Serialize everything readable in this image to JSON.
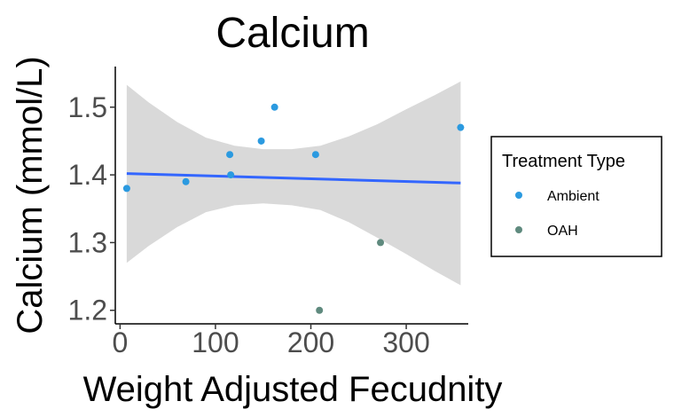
{
  "chart_data": {
    "type": "scatter",
    "title": "Calcium",
    "xlabel": "Weight Adjusted Fecudnity",
    "ylabel": "Calcium (mmol/L)",
    "xlim": [
      -5,
      365
    ],
    "ylim": [
      1.18,
      1.56
    ],
    "xticks": [
      0,
      100,
      200,
      300
    ],
    "xtick_labels": [
      "0",
      "100",
      "200",
      "300"
    ],
    "yticks": [
      1.2,
      1.3,
      1.4,
      1.5
    ],
    "ytick_labels": [
      "1.2",
      "1.3",
      "1.4",
      "1.5"
    ],
    "grid": false,
    "legend": {
      "title": "Treatment Type",
      "position": "right"
    },
    "series": [
      {
        "name": "Ambient",
        "color": "#2b9ae0",
        "points": [
          {
            "x": 7,
            "y": 1.38
          },
          {
            "x": 69,
            "y": 1.39
          },
          {
            "x": 115,
            "y": 1.43
          },
          {
            "x": 116,
            "y": 1.4
          },
          {
            "x": 148,
            "y": 1.45
          },
          {
            "x": 162,
            "y": 1.5
          },
          {
            "x": 205,
            "y": 1.43
          },
          {
            "x": 357,
            "y": 1.47
          }
        ]
      },
      {
        "name": "OAH",
        "color": "#5f8a7e",
        "points": [
          {
            "x": 209,
            "y": 1.2
          },
          {
            "x": 273,
            "y": 1.3
          }
        ]
      }
    ],
    "trend_line": {
      "type": "linear fit",
      "color": "#3366ff",
      "x": [
        7,
        357
      ],
      "y": [
        1.402,
        1.388
      ]
    },
    "confidence_band": {
      "color": "#d9d9d9",
      "x": [
        7,
        30,
        60,
        90,
        120,
        150,
        180,
        210,
        240,
        270,
        300,
        330,
        357
      ],
      "upper": [
        1.533,
        1.507,
        1.478,
        1.455,
        1.443,
        1.438,
        1.438,
        1.443,
        1.457,
        1.475,
        1.497,
        1.518,
        1.538
      ],
      "lower": [
        1.27,
        1.295,
        1.323,
        1.345,
        1.355,
        1.358,
        1.355,
        1.348,
        1.33,
        1.307,
        1.283,
        1.258,
        1.237
      ]
    }
  }
}
